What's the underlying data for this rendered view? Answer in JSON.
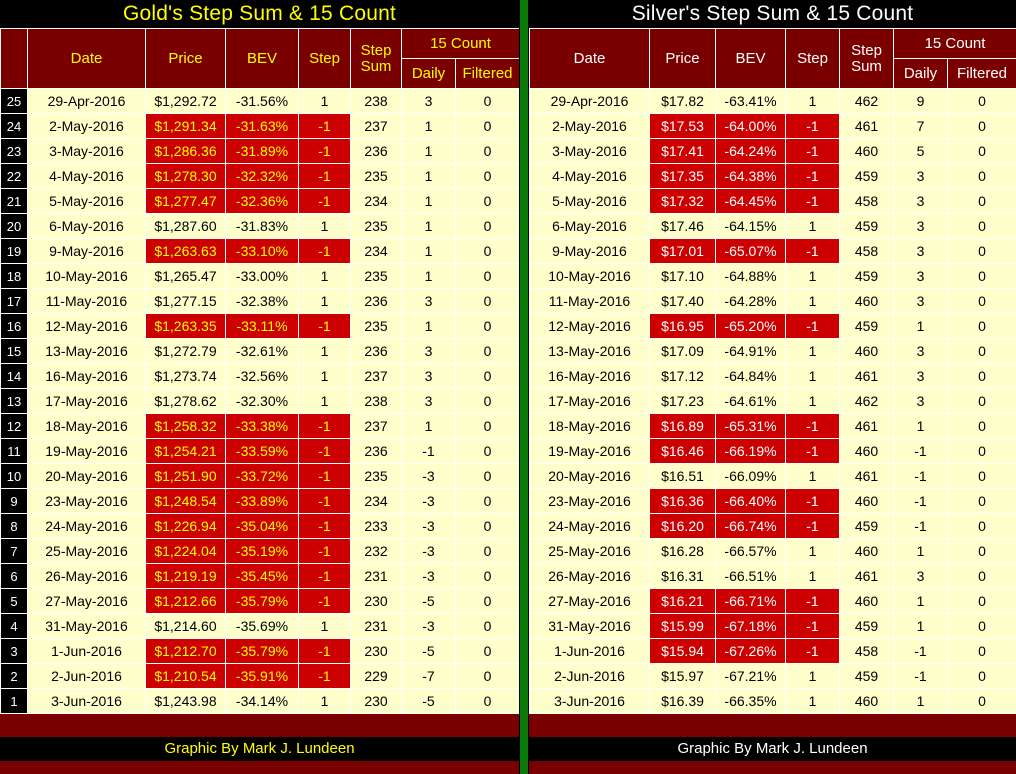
{
  "credit": "Graphic By Mark J. Lundeen",
  "colors": {
    "black": "#000000",
    "maroon": "#7A0000",
    "red": "#CC0000",
    "cream": "#FFFFCC",
    "yellow": "#FFFF00",
    "white": "#FFFFFF",
    "green": "#0A7A0A"
  },
  "headers": {
    "date": "Date",
    "price": "Price",
    "bev": "BEV",
    "step": "Step",
    "step_sum1": "Step",
    "step_sum2": "Sum",
    "count15": "15 Count",
    "daily": "Daily",
    "filtered": "Filtered"
  },
  "chart_data": [
    {
      "type": "table",
      "id": "gold",
      "title": "Gold's Step Sum & 15 Count",
      "columns": [
        "Date",
        "Price",
        "BEV",
        "Step",
        "Step Sum",
        "15 Count Daily",
        "15 Count Filtered"
      ],
      "row_numbers": [
        25,
        24,
        23,
        22,
        21,
        20,
        19,
        18,
        17,
        16,
        15,
        14,
        13,
        12,
        11,
        10,
        9,
        8,
        7,
        6,
        5,
        4,
        3,
        2,
        1
      ],
      "rows": [
        [
          "29-Apr-2016",
          "$1,292.72",
          "-31.56%",
          1,
          238,
          3,
          0
        ],
        [
          "2-May-2016",
          "$1,291.34",
          "-31.63%",
          -1,
          237,
          1,
          0
        ],
        [
          "3-May-2016",
          "$1,286.36",
          "-31.89%",
          -1,
          236,
          1,
          0
        ],
        [
          "4-May-2016",
          "$1,278.30",
          "-32.32%",
          -1,
          235,
          1,
          0
        ],
        [
          "5-May-2016",
          "$1,277.47",
          "-32.36%",
          -1,
          234,
          1,
          0
        ],
        [
          "6-May-2016",
          "$1,287.60",
          "-31.83%",
          1,
          235,
          1,
          0
        ],
        [
          "9-May-2016",
          "$1,263.63",
          "-33.10%",
          -1,
          234,
          1,
          0
        ],
        [
          "10-May-2016",
          "$1,265.47",
          "-33.00%",
          1,
          235,
          1,
          0
        ],
        [
          "11-May-2016",
          "$1,277.15",
          "-32.38%",
          1,
          236,
          3,
          0
        ],
        [
          "12-May-2016",
          "$1,263.35",
          "-33.11%",
          -1,
          235,
          1,
          0
        ],
        [
          "13-May-2016",
          "$1,272.79",
          "-32.61%",
          1,
          236,
          3,
          0
        ],
        [
          "16-May-2016",
          "$1,273.74",
          "-32.56%",
          1,
          237,
          3,
          0
        ],
        [
          "17-May-2016",
          "$1,278.62",
          "-32.30%",
          1,
          238,
          3,
          0
        ],
        [
          "18-May-2016",
          "$1,258.32",
          "-33.38%",
          -1,
          237,
          1,
          0
        ],
        [
          "19-May-2016",
          "$1,254.21",
          "-33.59%",
          -1,
          236,
          -1,
          0
        ],
        [
          "20-May-2016",
          "$1,251.90",
          "-33.72%",
          -1,
          235,
          -3,
          0
        ],
        [
          "23-May-2016",
          "$1,248.54",
          "-33.89%",
          -1,
          234,
          -3,
          0
        ],
        [
          "24-May-2016",
          "$1,226.94",
          "-35.04%",
          -1,
          233,
          -3,
          0
        ],
        [
          "25-May-2016",
          "$1,224.04",
          "-35.19%",
          -1,
          232,
          -3,
          0
        ],
        [
          "26-May-2016",
          "$1,219.19",
          "-35.45%",
          -1,
          231,
          -3,
          0
        ],
        [
          "27-May-2016",
          "$1,212.66",
          "-35.79%",
          -1,
          230,
          -5,
          0
        ],
        [
          "31-May-2016",
          "$1,214.60",
          "-35.69%",
          1,
          231,
          -3,
          0
        ],
        [
          "1-Jun-2016",
          "$1,212.70",
          "-35.79%",
          -1,
          230,
          -5,
          0
        ],
        [
          "2-Jun-2016",
          "$1,210.54",
          "-35.91%",
          -1,
          229,
          -7,
          0
        ],
        [
          "3-Jun-2016",
          "$1,243.98",
          "-34.14%",
          1,
          230,
          -5,
          0
        ]
      ]
    },
    {
      "type": "table",
      "id": "silver",
      "title": "Silver's Step Sum & 15 Count",
      "columns": [
        "Date",
        "Price",
        "BEV",
        "Step",
        "Step Sum",
        "15 Count Daily",
        "15 Count Filtered"
      ],
      "rows": [
        [
          "29-Apr-2016",
          "$17.82",
          "-63.41%",
          1,
          462,
          9,
          0
        ],
        [
          "2-May-2016",
          "$17.53",
          "-64.00%",
          -1,
          461,
          7,
          0
        ],
        [
          "3-May-2016",
          "$17.41",
          "-64.24%",
          -1,
          460,
          5,
          0
        ],
        [
          "4-May-2016",
          "$17.35",
          "-64.38%",
          -1,
          459,
          3,
          0
        ],
        [
          "5-May-2016",
          "$17.32",
          "-64.45%",
          -1,
          458,
          3,
          0
        ],
        [
          "6-May-2016",
          "$17.46",
          "-64.15%",
          1,
          459,
          3,
          0
        ],
        [
          "9-May-2016",
          "$17.01",
          "-65.07%",
          -1,
          458,
          3,
          0
        ],
        [
          "10-May-2016",
          "$17.10",
          "-64.88%",
          1,
          459,
          3,
          0
        ],
        [
          "11-May-2016",
          "$17.40",
          "-64.28%",
          1,
          460,
          3,
          0
        ],
        [
          "12-May-2016",
          "$16.95",
          "-65.20%",
          -1,
          459,
          1,
          0
        ],
        [
          "13-May-2016",
          "$17.09",
          "-64.91%",
          1,
          460,
          3,
          0
        ],
        [
          "16-May-2016",
          "$17.12",
          "-64.84%",
          1,
          461,
          3,
          0
        ],
        [
          "17-May-2016",
          "$17.23",
          "-64.61%",
          1,
          462,
          3,
          0
        ],
        [
          "18-May-2016",
          "$16.89",
          "-65.31%",
          -1,
          461,
          1,
          0
        ],
        [
          "19-May-2016",
          "$16.46",
          "-66.19%",
          -1,
          460,
          -1,
          0
        ],
        [
          "20-May-2016",
          "$16.51",
          "-66.09%",
          1,
          461,
          -1,
          0
        ],
        [
          "23-May-2016",
          "$16.36",
          "-66.40%",
          -1,
          460,
          -1,
          0
        ],
        [
          "24-May-2016",
          "$16.20",
          "-66.74%",
          -1,
          459,
          -1,
          0
        ],
        [
          "25-May-2016",
          "$16.28",
          "-66.57%",
          1,
          460,
          1,
          0
        ],
        [
          "26-May-2016",
          "$16.31",
          "-66.51%",
          1,
          461,
          3,
          0
        ],
        [
          "27-May-2016",
          "$16.21",
          "-66.71%",
          -1,
          460,
          1,
          0
        ],
        [
          "31-May-2016",
          "$15.99",
          "-67.18%",
          -1,
          459,
          1,
          0
        ],
        [
          "1-Jun-2016",
          "$15.94",
          "-67.26%",
          -1,
          458,
          -1,
          0
        ],
        [
          "2-Jun-2016",
          "$15.97",
          "-67.21%",
          1,
          459,
          -1,
          0
        ],
        [
          "3-Jun-2016",
          "$16.39",
          "-66.35%",
          1,
          460,
          1,
          0
        ]
      ]
    }
  ]
}
